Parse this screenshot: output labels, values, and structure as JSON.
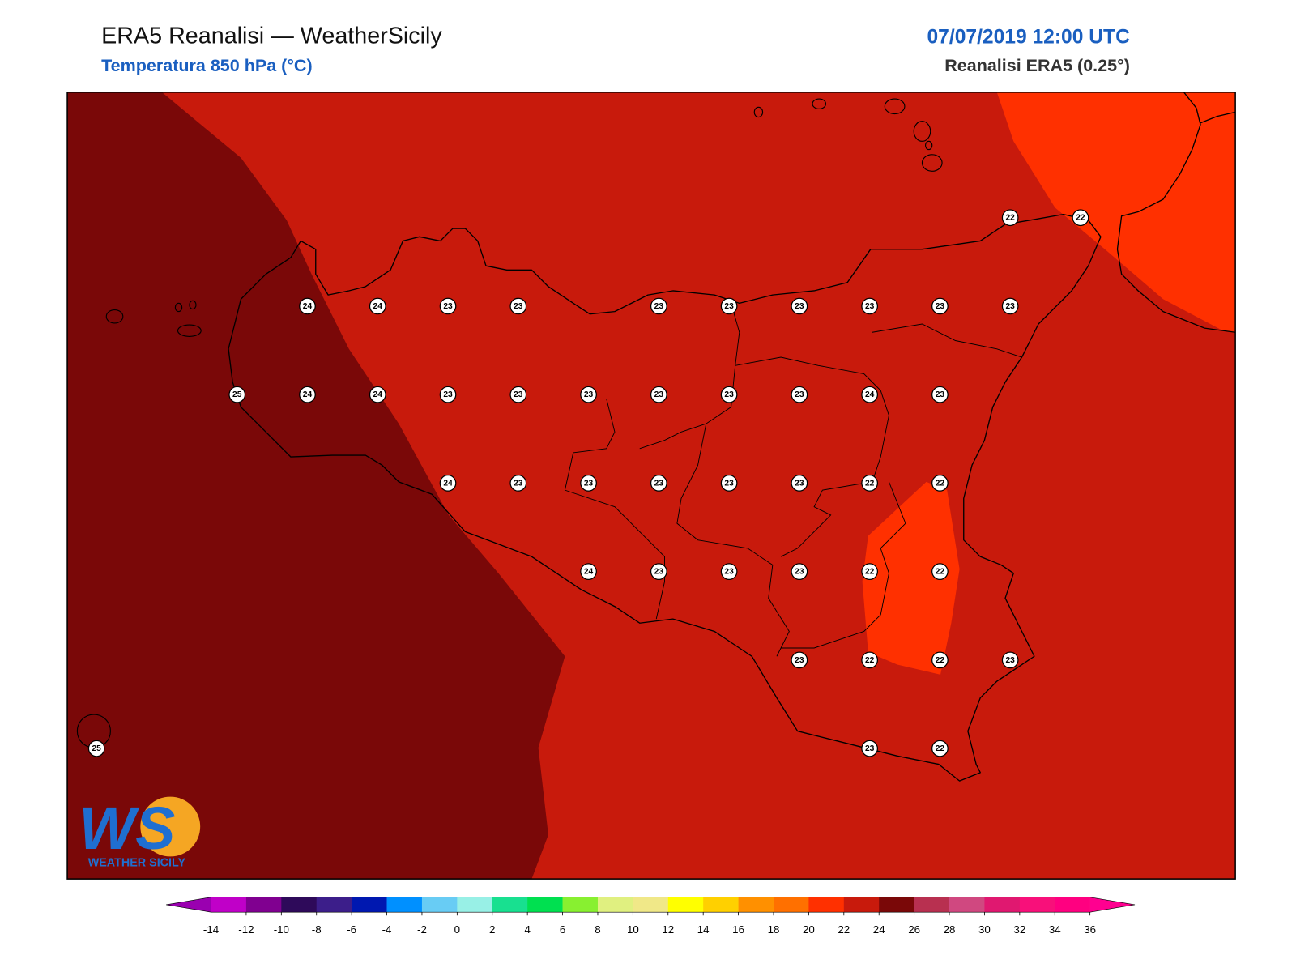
{
  "header": {
    "title": "ERA5 Reanalisi — WeatherSicily",
    "subtitle": "Temperatura 850 hPa (°C)",
    "valid_time": "07/07/2019 12:00 UTC",
    "source": "Reanalisi ERA5 (0.25°)"
  },
  "map": {
    "stations": [
      22,
      22,
      24,
      24,
      23,
      23,
      23,
      23,
      23,
      23,
      23,
      23,
      25,
      24,
      24,
      23,
      23,
      23,
      23,
      23,
      23,
      24,
      23,
      24,
      23,
      23,
      23,
      23,
      23,
      22,
      22,
      24,
      23,
      23,
      23,
      22,
      22,
      23,
      22,
      22,
      23,
      25,
      23,
      22
    ]
  },
  "colorbar": {
    "ticks": [
      -14,
      -12,
      -10,
      -8,
      -6,
      -4,
      -2,
      0,
      2,
      4,
      6,
      8,
      10,
      12,
      14,
      16,
      18,
      20,
      22,
      24,
      26,
      28,
      30,
      32,
      34,
      36
    ],
    "colors": [
      "#c000c8",
      "#800090",
      "#2e0a5a",
      "#3c1e8a",
      "#0018b0",
      "#0090ff",
      "#68ccf4",
      "#98f0e6",
      "#18e090",
      "#00e050",
      "#88f030",
      "#e0f080",
      "#f0e888",
      "#ffff00",
      "#ffd000",
      "#ff9000",
      "#ff7000",
      "#ff3000",
      "#c81a0c",
      "#7a0808",
      "#b83050",
      "#d04880",
      "#e01870",
      "#f8107a",
      "#ff0080"
    ],
    "under_color": "#9a00b0",
    "over_color": "#ff0090"
  },
  "logo": {
    "initials": "WS",
    "name": "WEATHER SICILY"
  }
}
